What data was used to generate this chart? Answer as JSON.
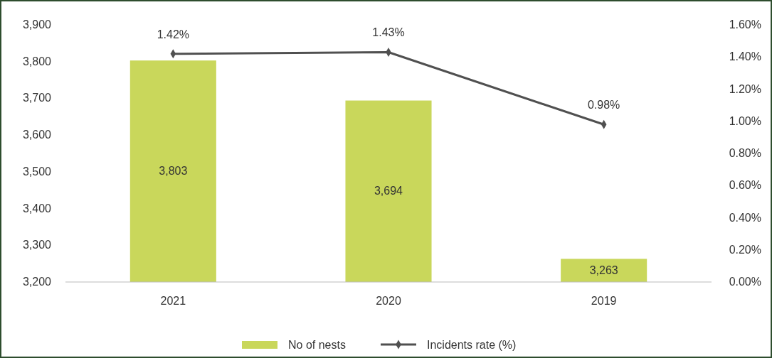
{
  "chart_data": {
    "type": "bar",
    "categories": [
      "2021",
      "2020",
      "2019"
    ],
    "series": [
      {
        "name": "No of nests",
        "color": "#c9d75b",
        "values": [
          3803,
          3694,
          3263
        ],
        "value_labels": [
          "3,803",
          "3,694",
          "3,263"
        ]
      },
      {
        "name": "Incidents rate (%)",
        "type": "line",
        "axis": "y2",
        "color": "#505050",
        "values": [
          1.42,
          1.43,
          0.98
        ],
        "value_labels": [
          "1.42%",
          "1.43%",
          "0.98%"
        ],
        "marker": "diamond"
      }
    ],
    "ylim": [
      3200,
      3900
    ],
    "yticks": [
      {
        "value": 3200,
        "label": "3,200"
      },
      {
        "value": 3300,
        "label": "3,300"
      },
      {
        "value": 3400,
        "label": "3,400"
      },
      {
        "value": 3500,
        "label": "3,500"
      },
      {
        "value": 3600,
        "label": "3,600"
      },
      {
        "value": 3700,
        "label": "3,700"
      },
      {
        "value": 3800,
        "label": "3,800"
      },
      {
        "value": 3900,
        "label": "3,900"
      }
    ],
    "y2lim": [
      0,
      1.6
    ],
    "y2ticks": [
      {
        "value": 0,
        "label": "0.00%"
      },
      {
        "value": 0.2,
        "label": "0.20%"
      },
      {
        "value": 0.4,
        "label": "0.40%"
      },
      {
        "value": 0.6,
        "label": "0.60%"
      },
      {
        "value": 0.8,
        "label": "0.80%"
      },
      {
        "value": 1.0,
        "label": "1.00%"
      },
      {
        "value": 1.2,
        "label": "1.20%"
      },
      {
        "value": 1.4,
        "label": "1.40%"
      },
      {
        "value": 1.6,
        "label": "1.60%"
      }
    ],
    "legend": "bottom",
    "grid": false
  }
}
